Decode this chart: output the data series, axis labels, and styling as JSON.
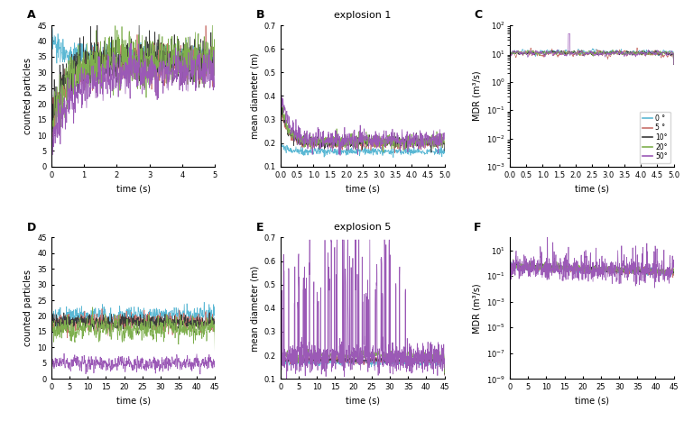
{
  "colors": {
    "c0": "#5BB8D4",
    "c5": "#C8706A",
    "c10": "#3A3A3A",
    "c20": "#7EAF4E",
    "c50": "#9B59B6"
  },
  "legend_labels": [
    "0 °",
    "5 °",
    "10°",
    "20°",
    "50°"
  ],
  "titles": {
    "B": "explosion 1",
    "E": "explosion 5"
  },
  "panel_labels": [
    "A",
    "B",
    "C",
    "D",
    "E",
    "F"
  ],
  "ylabels": {
    "A": "counted particles",
    "B": "mean diameter (m)",
    "C": "MDR (m³/s)",
    "D": "counted particles",
    "E": "mean diameter (m)",
    "F": "MDR (m³/s)"
  },
  "xlabels": "time (s)",
  "exp1_xlim": [
    0,
    5
  ],
  "exp5_xlim": [
    0,
    45
  ],
  "A_ylim": [
    0,
    45
  ],
  "B_ylim": [
    0.1,
    0.7
  ],
  "C_ylim": [
    0.001,
    100.0
  ],
  "D_ylim": [
    0,
    45
  ],
  "E_ylim": [
    0.1,
    0.7
  ],
  "F_ylim": [
    1e-09,
    100.0
  ]
}
